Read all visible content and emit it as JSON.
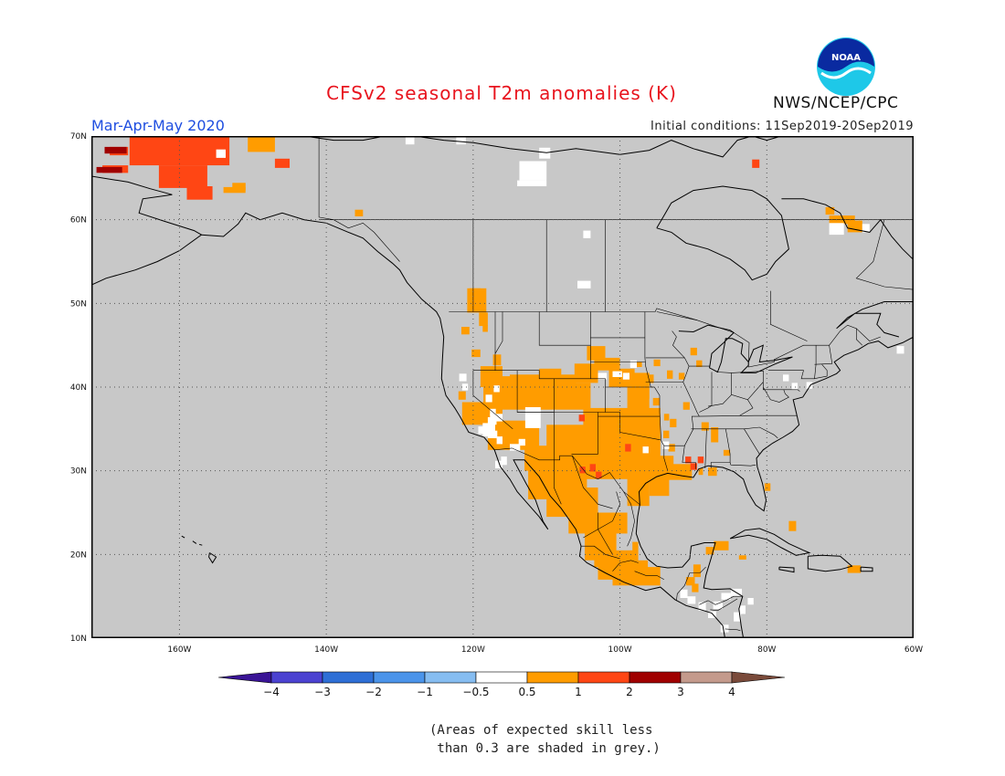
{
  "header": {
    "title": "CFSv2 seasonal T2m anomalies (K)",
    "season": "Mar-Apr-May 2020",
    "initial_conditions": "Initial conditions: 11Sep2019-20Sep2019",
    "org": "NWS/NCEP/CPC",
    "logo_text": "NOAA"
  },
  "map": {
    "projection": "lon-lat",
    "lon_range": [
      -172,
      -60
    ],
    "lat_range": [
      10,
      70
    ],
    "lon_ticks": [
      {
        "value": -160,
        "label": "160W"
      },
      {
        "value": -140,
        "label": "140W"
      },
      {
        "value": -120,
        "label": "120W"
      },
      {
        "value": -100,
        "label": "100W"
      },
      {
        "value": -80,
        "label": "80W"
      },
      {
        "value": -60,
        "label": "60W"
      }
    ],
    "lat_ticks": [
      {
        "value": 10,
        "label": "10N"
      },
      {
        "value": 20,
        "label": "20N"
      },
      {
        "value": 30,
        "label": "30N"
      },
      {
        "value": 40,
        "label": "40N"
      },
      {
        "value": 50,
        "label": "50N"
      },
      {
        "value": 60,
        "label": "60N"
      },
      {
        "value": 70,
        "label": "70N"
      }
    ],
    "grid_lines": "dotted",
    "background_color": "#c8c8c8"
  },
  "colorbar": {
    "tick_labels": [
      "-4",
      "-3",
      "-2",
      "-1",
      "-0.5",
      "0.5",
      "1",
      "2",
      "3",
      "4"
    ],
    "colors": [
      "#3a1496",
      "#4b42d1",
      "#2e6fd6",
      "#4b94ea",
      "#86bdf1",
      "#ffffff",
      "#ff9c00",
      "#ff4614",
      "#a00000",
      "#c49a8c",
      "#7a4a3a"
    ]
  },
  "note": {
    "line1": "(Areas of expected skill less",
    "line2": " than 0.3 are shaded in grey.)"
  },
  "chart_data": {
    "type": "heatmap",
    "value_bins": [
      "0.5 to 1",
      "1 to 2",
      "2 to 3",
      "-0.5 to 0.5"
    ],
    "bin_colors": [
      "#ff9c00",
      "#ff4614",
      "#a00000",
      "#ffffff"
    ],
    "regions": [
      {
        "area": "Western Alaska (63-70N, 168-152W)",
        "bin": "1 to 2"
      },
      {
        "area": "Far western Alaska coast (~66N, 170W)",
        "bin": "2 to 3"
      },
      {
        "area": "Northern Alaska (~68-70N, 150-147W)",
        "bin": "0.5 to 1"
      },
      {
        "area": "Southwest US / Texas / Northern Mexico (25-42N, 120-95W)",
        "bin": "0.5 to 1"
      },
      {
        "area": "Mexico (16-32N, 112-95W)",
        "bin": "0.5 to 1"
      },
      {
        "area": "Gulf coast Louisiana/Mississippi (~30N, 91-89W)",
        "bin": "1 to 2"
      },
      {
        "area": "Nevada / California interior (~33-37N, 120-116W)",
        "bin": "-0.5 to 0.5"
      },
      {
        "area": "Quebec / Labrador (~58-62N, 70-65W)",
        "bin": "0.5 to 1"
      }
    ]
  }
}
